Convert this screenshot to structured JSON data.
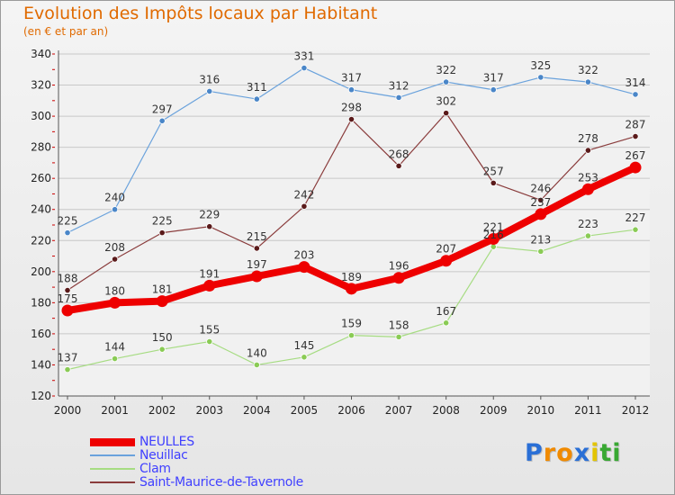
{
  "title": "Evolution des Impôts locaux par Habitant",
  "subtitle": "(en € et par an)",
  "logo": {
    "letters": [
      "P",
      "r",
      "o",
      "x",
      "i",
      "t",
      "i"
    ],
    "colors": [
      "#2a6fd6",
      "#f08a00",
      "#f08a00",
      "#2a6fd6",
      "#e3c400",
      "#38a832",
      "#38a832"
    ]
  },
  "chart_data": {
    "type": "line",
    "x": [
      "2000",
      "2001",
      "2002",
      "2003",
      "2004",
      "2005",
      "2006",
      "2007",
      "2008",
      "2009",
      "2010",
      "2011",
      "2012"
    ],
    "ylim": [
      120,
      340
    ],
    "yticks": [
      "120",
      "140",
      "160",
      "180",
      "200",
      "220",
      "240",
      "260",
      "280",
      "300",
      "320",
      "340"
    ],
    "grid": "horizontal",
    "legend_position": "bottom-left",
    "series": [
      {
        "name": "NEULLES",
        "color": "#ee0000",
        "marker_color": "#ee0000",
        "width": 8,
        "values": [
          175,
          180,
          181,
          191,
          197,
          203,
          189,
          196,
          207,
          221,
          237,
          253,
          267
        ]
      },
      {
        "name": "Neuillac",
        "color": "#6aa2dc",
        "marker_color": "#4a86c8",
        "width": 1.2,
        "values": [
          225,
          240,
          297,
          316,
          311,
          331,
          317,
          312,
          322,
          317,
          325,
          322,
          314
        ]
      },
      {
        "name": "Clam",
        "color": "#a6dc82",
        "marker_color": "#8acb55",
        "width": 1.2,
        "values": [
          137,
          144,
          150,
          155,
          140,
          145,
          159,
          158,
          167,
          216,
          213,
          223,
          227
        ]
      },
      {
        "name": "Saint-Maurice-de-Tavernole",
        "color": "#8a3c3c",
        "marker_color": "#5a1a1a",
        "width": 1.2,
        "values": [
          188,
          208,
          225,
          229,
          215,
          242,
          298,
          268,
          302,
          257,
          246,
          278,
          287
        ]
      }
    ]
  }
}
